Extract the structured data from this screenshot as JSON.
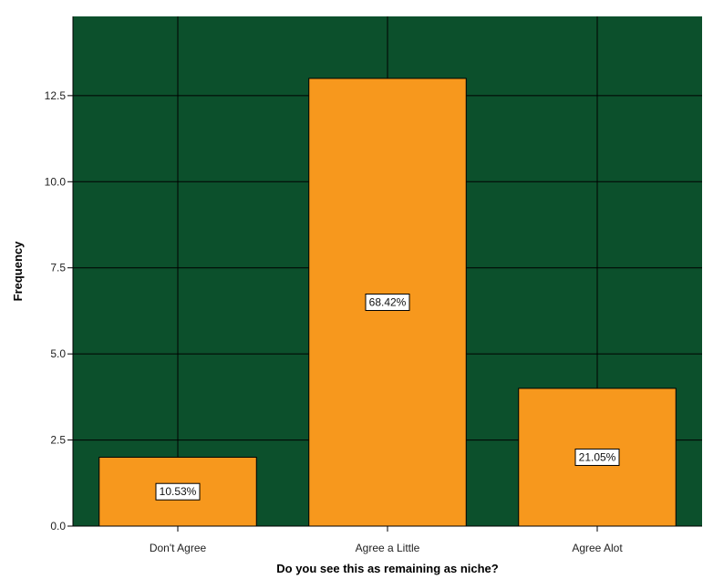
{
  "chart_data": {
    "type": "bar",
    "categories": [
      "Don't Agree",
      "Agree a Little",
      "Agree Alot"
    ],
    "values": [
      2,
      13,
      4
    ],
    "data_labels": [
      "10.53%",
      "68.42%",
      "21.05%"
    ],
    "title": "",
    "xlabel": "Do you see this as remaining as niche?",
    "ylabel": "Frequency",
    "ylim": [
      0,
      14.8
    ],
    "yticks": [
      0,
      2.5,
      5,
      7.5,
      10,
      12.5
    ],
    "ytick_labels": [
      "0.0",
      "2.5",
      "5.0",
      "7.5",
      "10.0",
      "12.5"
    ],
    "grid": true,
    "colors": {
      "plot_background": "#0c502c",
      "bar_fill": "#f7981d",
      "bar_stroke": "#000000",
      "grid": "#000000",
      "label_box_fill": "#ffffff"
    }
  }
}
